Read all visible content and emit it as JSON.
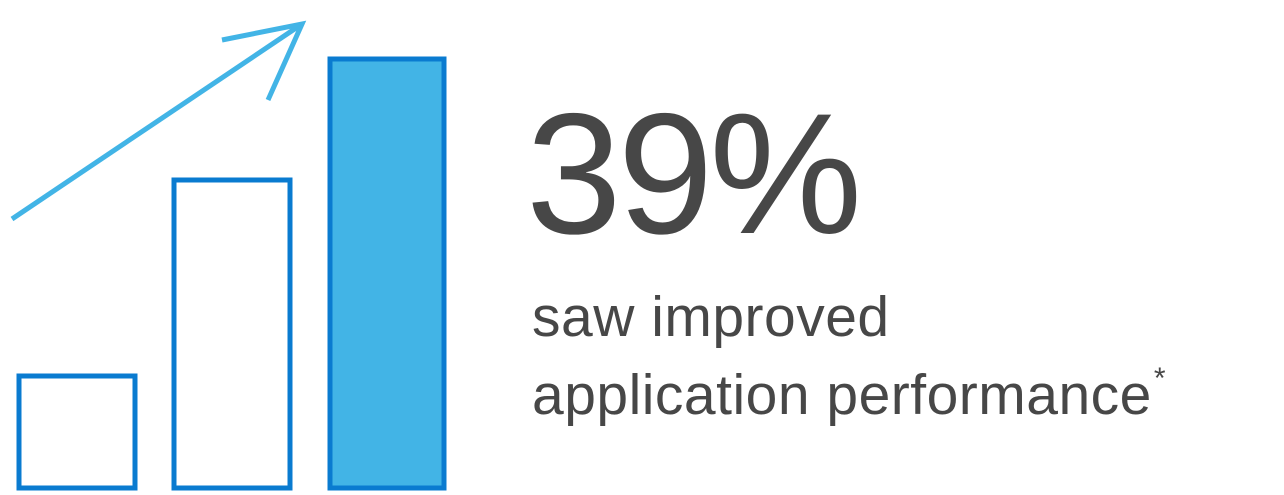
{
  "colors": {
    "bar_outline": "#0a7bd0",
    "bar_fill": "#42b4e6",
    "arrow": "#42b4e6",
    "text": "#474747"
  },
  "graphic": {
    "icon": "growth-bar-chart-icon",
    "bars": [
      {
        "name": "small",
        "filled": false
      },
      {
        "name": "medium",
        "filled": false
      },
      {
        "name": "tall",
        "filled": true
      }
    ],
    "arrow_icon": "trend-up-arrow-icon"
  },
  "stat": {
    "value": "39%",
    "caption_line1": "saw improved",
    "caption_line2": "application performance",
    "footnote_mark": "*"
  }
}
